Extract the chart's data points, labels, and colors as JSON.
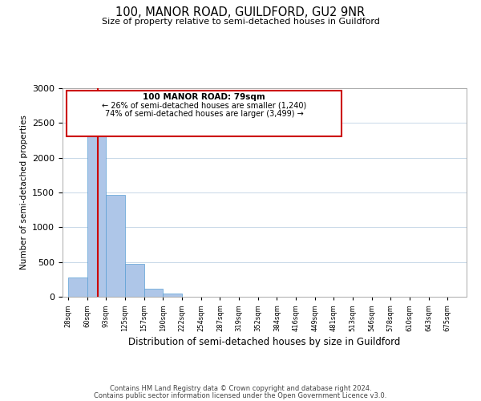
{
  "title": "100, MANOR ROAD, GUILDFORD, GU2 9NR",
  "subtitle": "Size of property relative to semi-detached houses in Guildford",
  "xlabel": "Distribution of semi-detached houses by size in Guildford",
  "ylabel": "Number of semi-detached properties",
  "bar_labels": [
    "28sqm",
    "60sqm",
    "93sqm",
    "125sqm",
    "157sqm",
    "190sqm",
    "222sqm",
    "254sqm",
    "287sqm",
    "319sqm",
    "352sqm",
    "384sqm",
    "416sqm",
    "449sqm",
    "481sqm",
    "513sqm",
    "546sqm",
    "578sqm",
    "610sqm",
    "643sqm",
    "675sqm"
  ],
  "bar_values": [
    280,
    2370,
    1460,
    470,
    120,
    50,
    0,
    0,
    0,
    0,
    0,
    0,
    0,
    0,
    0,
    0,
    0,
    0,
    0,
    0,
    0
  ],
  "bar_color": "#aec6e8",
  "bar_edge_color": "#5a9fd4",
  "ylim": [
    0,
    3000
  ],
  "yticks": [
    0,
    500,
    1000,
    1500,
    2000,
    2500,
    3000
  ],
  "vline_color": "#cc0000",
  "annotation_title": "100 MANOR ROAD: 79sqm",
  "annotation_line1": "← 26% of semi-detached houses are smaller (1,240)",
  "annotation_line2": "74% of semi-detached houses are larger (3,499) →",
  "annotation_box_color": "#cc0000",
  "footnote1": "Contains HM Land Registry data © Crown copyright and database right 2024.",
  "footnote2": "Contains public sector information licensed under the Open Government Licence v3.0."
}
